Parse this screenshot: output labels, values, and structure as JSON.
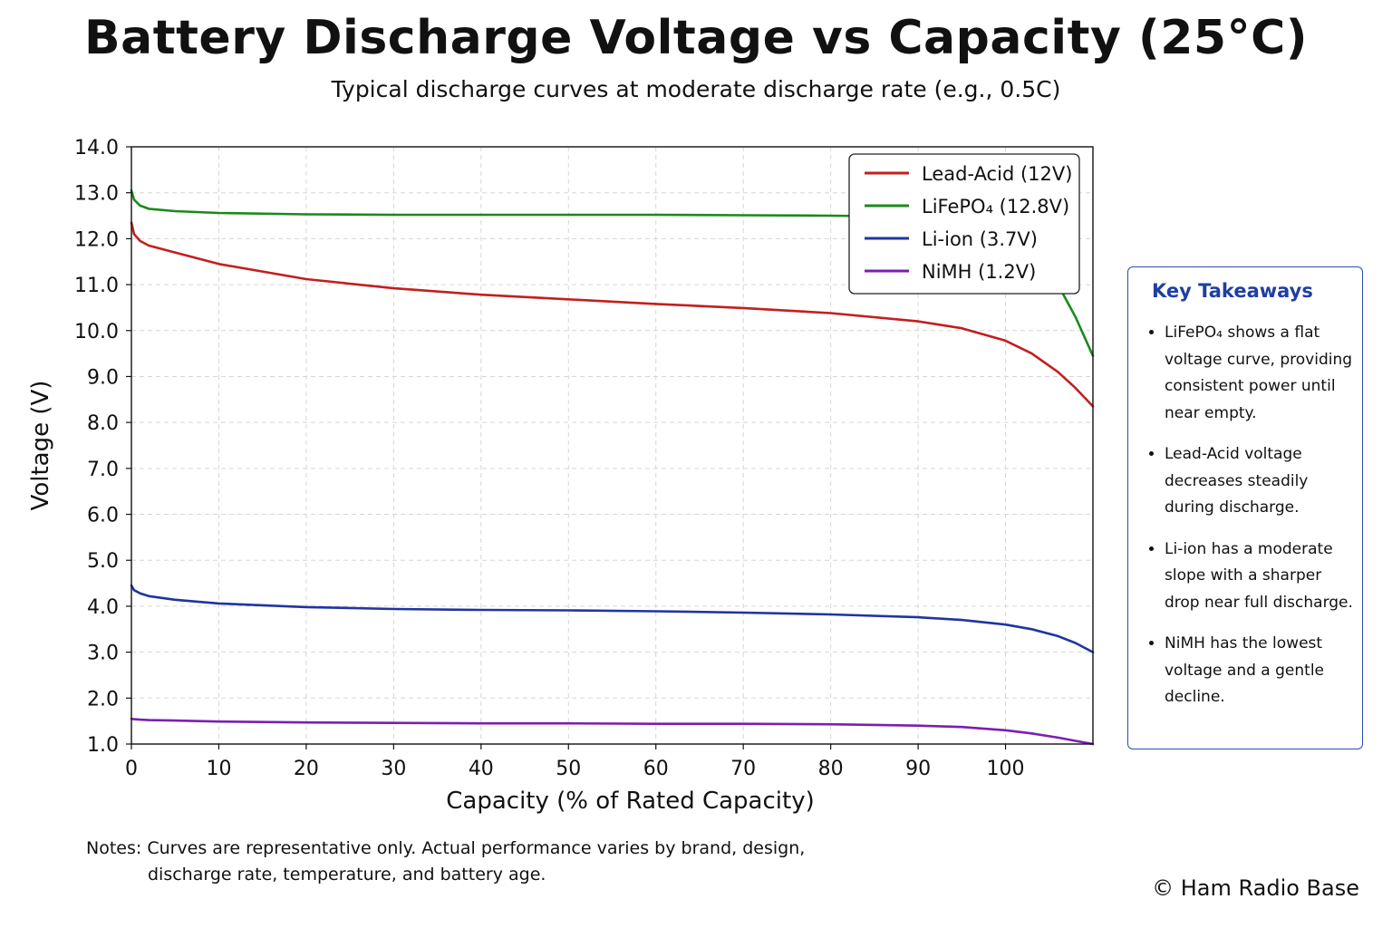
{
  "title": "Battery Discharge Voltage vs Capacity (25°C)",
  "subtitle": "Typical discharge curves at moderate discharge rate (e.g., 0.5C)",
  "chart_data": {
    "type": "line",
    "xlabel": "Capacity (% of Rated Capacity)",
    "ylabel": "Voltage (V)",
    "xlim": [
      0,
      110
    ],
    "ylim": [
      1.0,
      14.0
    ],
    "xticks": [
      0,
      10,
      20,
      30,
      40,
      50,
      60,
      70,
      80,
      90,
      100
    ],
    "yticks": [
      1.0,
      2.0,
      3.0,
      4.0,
      5.0,
      6.0,
      7.0,
      8.0,
      9.0,
      10.0,
      11.0,
      12.0,
      13.0,
      14.0
    ],
    "grid": true,
    "legend_position": "top-right",
    "series": [
      {
        "name": "Lead-Acid (12V)",
        "color": "#c21f1f",
        "x": [
          0,
          0.3,
          1,
          2,
          5,
          10,
          20,
          30,
          40,
          50,
          60,
          70,
          80,
          90,
          95,
          100,
          103,
          106,
          108,
          110
        ],
        "y": [
          12.35,
          12.1,
          11.95,
          11.85,
          11.7,
          11.45,
          11.12,
          10.92,
          10.78,
          10.68,
          10.58,
          10.49,
          10.38,
          10.2,
          10.05,
          9.78,
          9.5,
          9.1,
          8.75,
          8.35
        ]
      },
      {
        "name": "LiFePO₄ (12.8V)",
        "color": "#1a8a1a",
        "x": [
          0,
          0.3,
          1,
          2,
          5,
          10,
          20,
          30,
          40,
          50,
          60,
          70,
          80,
          90,
          95,
          100,
          103,
          106,
          108,
          110
        ],
        "y": [
          13.05,
          12.85,
          12.72,
          12.65,
          12.6,
          12.56,
          12.53,
          12.52,
          12.52,
          12.52,
          12.52,
          12.51,
          12.5,
          12.48,
          12.4,
          12.2,
          11.8,
          11.0,
          10.3,
          9.45
        ]
      },
      {
        "name": "Li-ion (3.7V)",
        "color": "#1f35a0",
        "x": [
          0,
          0.3,
          1,
          2,
          5,
          10,
          20,
          30,
          40,
          50,
          60,
          70,
          80,
          90,
          95,
          100,
          103,
          106,
          108,
          110
        ],
        "y": [
          4.45,
          4.35,
          4.28,
          4.22,
          4.14,
          4.06,
          3.98,
          3.94,
          3.92,
          3.91,
          3.89,
          3.86,
          3.82,
          3.76,
          3.7,
          3.6,
          3.5,
          3.35,
          3.2,
          3.0
        ]
      },
      {
        "name": "NiMH (1.2V)",
        "color": "#7a1fb0",
        "x": [
          0,
          0.3,
          1,
          2,
          5,
          10,
          20,
          30,
          40,
          50,
          60,
          70,
          80,
          90,
          95,
          100,
          103,
          106,
          108,
          110
        ],
        "y": [
          1.55,
          1.54,
          1.53,
          1.52,
          1.51,
          1.49,
          1.47,
          1.46,
          1.45,
          1.45,
          1.44,
          1.44,
          1.43,
          1.4,
          1.37,
          1.3,
          1.23,
          1.14,
          1.07,
          1.0
        ]
      }
    ]
  },
  "takeaways": {
    "title": "Key Takeaways",
    "items": [
      "LiFePO₄ shows a flat voltage curve, providing consistent power until near empty.",
      "Lead-Acid voltage decreases steadily during discharge.",
      "Li-ion has a moderate slope with a sharper drop near full discharge.",
      "NiMH has the lowest voltage and a gentle decline."
    ]
  },
  "notes": {
    "line1": "Notes: Curves are representative only. Actual performance varies by brand, design,",
    "line2": "discharge rate, temperature, and battery age."
  },
  "copyright": "© Ham Radio Base"
}
